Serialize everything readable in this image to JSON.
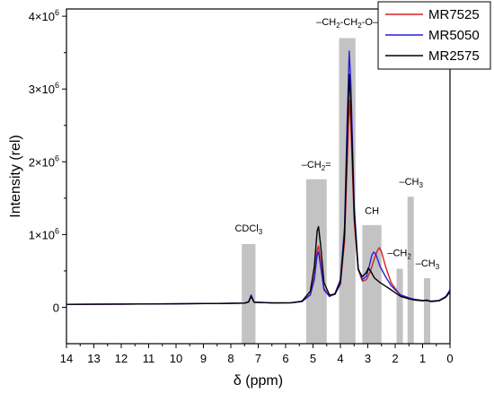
{
  "chart_data": {
    "type": "line",
    "xlabel": "δ (ppm)",
    "ylabel": "Intensity (rel)",
    "xlim": [
      14,
      0
    ],
    "ylim": [
      -500000,
      4100000
    ],
    "x_reversed": true,
    "x_ticks": [
      "14",
      "13",
      "12",
      "11",
      "10",
      "9",
      "8",
      "7",
      "6",
      "5",
      "4",
      "3",
      "2",
      "1",
      "0"
    ],
    "y_ticks": [
      {
        "value": 0,
        "base": "0",
        "exp": ""
      },
      {
        "value": 1000000,
        "base": "1×10",
        "exp": "6"
      },
      {
        "value": 2000000,
        "base": "2×10",
        "exp": "6"
      },
      {
        "value": 3000000,
        "base": "3×10",
        "exp": "6"
      },
      {
        "value": 4000000,
        "base": "4×10",
        "exp": "6"
      }
    ],
    "legend_position": "top-right",
    "series": [
      {
        "name": "MR7525",
        "color": "#d62020",
        "points": [
          [
            14,
            40000
          ],
          [
            12,
            44000
          ],
          [
            10,
            48000
          ],
          [
            8.5,
            52000
          ],
          [
            7.5,
            58000
          ],
          [
            7.35,
            75000
          ],
          [
            7.26,
            160000
          ],
          [
            7.15,
            70000
          ],
          [
            6.5,
            60000
          ],
          [
            5.8,
            62000
          ],
          [
            5.4,
            80000
          ],
          [
            5.1,
            180000
          ],
          [
            4.95,
            420000
          ],
          [
            4.85,
            780000
          ],
          [
            4.8,
            840000
          ],
          [
            4.72,
            620000
          ],
          [
            4.6,
            260000
          ],
          [
            4.4,
            150000
          ],
          [
            4.2,
            180000
          ],
          [
            4.0,
            320000
          ],
          [
            3.85,
            900000
          ],
          [
            3.75,
            2000000
          ],
          [
            3.68,
            2850000
          ],
          [
            3.62,
            2500000
          ],
          [
            3.5,
            1200000
          ],
          [
            3.35,
            520000
          ],
          [
            3.2,
            360000
          ],
          [
            3.05,
            380000
          ],
          [
            2.9,
            500000
          ],
          [
            2.75,
            680000
          ],
          [
            2.65,
            780000
          ],
          [
            2.58,
            820000
          ],
          [
            2.5,
            760000
          ],
          [
            2.35,
            560000
          ],
          [
            2.15,
            340000
          ],
          [
            2.0,
            260000
          ],
          [
            1.8,
            160000
          ],
          [
            1.5,
            120000
          ],
          [
            1.3,
            100000
          ],
          [
            1.0,
            90000
          ],
          [
            0.85,
            95000
          ],
          [
            0.7,
            80000
          ],
          [
            0.4,
            90000
          ],
          [
            0.15,
            140000
          ],
          [
            0,
            220000
          ]
        ]
      },
      {
        "name": "MR5050",
        "color": "#2a1ed6",
        "points": [
          [
            14,
            40000
          ],
          [
            12,
            44000
          ],
          [
            10,
            48000
          ],
          [
            8.5,
            52000
          ],
          [
            7.5,
            58000
          ],
          [
            7.35,
            78000
          ],
          [
            7.26,
            170000
          ],
          [
            7.15,
            72000
          ],
          [
            6.5,
            60000
          ],
          [
            5.8,
            62000
          ],
          [
            5.4,
            78000
          ],
          [
            5.1,
            170000
          ],
          [
            4.95,
            380000
          ],
          [
            4.85,
            720000
          ],
          [
            4.8,
            760000
          ],
          [
            4.72,
            560000
          ],
          [
            4.6,
            240000
          ],
          [
            4.4,
            150000
          ],
          [
            4.2,
            190000
          ],
          [
            4.0,
            380000
          ],
          [
            3.85,
            1100000
          ],
          [
            3.75,
            2600000
          ],
          [
            3.68,
            3520000
          ],
          [
            3.62,
            3100000
          ],
          [
            3.5,
            1400000
          ],
          [
            3.35,
            540000
          ],
          [
            3.2,
            380000
          ],
          [
            3.05,
            430000
          ],
          [
            2.95,
            560000
          ],
          [
            2.85,
            720000
          ],
          [
            2.78,
            760000
          ],
          [
            2.7,
            720000
          ],
          [
            2.55,
            560000
          ],
          [
            2.35,
            420000
          ],
          [
            2.15,
            300000
          ],
          [
            2.0,
            240000
          ],
          [
            1.8,
            170000
          ],
          [
            1.5,
            130000
          ],
          [
            1.3,
            110000
          ],
          [
            1.0,
            95000
          ],
          [
            0.85,
            100000
          ],
          [
            0.7,
            85000
          ],
          [
            0.4,
            95000
          ],
          [
            0.15,
            150000
          ],
          [
            0,
            240000
          ]
        ]
      },
      {
        "name": "MR2575",
        "color": "#000000",
        "points": [
          [
            14,
            40000
          ],
          [
            12,
            44000
          ],
          [
            10,
            48000
          ],
          [
            8.5,
            52000
          ],
          [
            7.5,
            58000
          ],
          [
            7.35,
            72000
          ],
          [
            7.26,
            150000
          ],
          [
            7.15,
            68000
          ],
          [
            6.5,
            60000
          ],
          [
            5.8,
            62000
          ],
          [
            5.4,
            85000
          ],
          [
            5.1,
            220000
          ],
          [
            4.95,
            560000
          ],
          [
            4.85,
            1050000
          ],
          [
            4.8,
            1110000
          ],
          [
            4.72,
            850000
          ],
          [
            4.6,
            340000
          ],
          [
            4.4,
            170000
          ],
          [
            4.2,
            180000
          ],
          [
            4.0,
            340000
          ],
          [
            3.85,
            1000000
          ],
          [
            3.75,
            2300000
          ],
          [
            3.68,
            3200000
          ],
          [
            3.62,
            2800000
          ],
          [
            3.5,
            1300000
          ],
          [
            3.35,
            520000
          ],
          [
            3.2,
            420000
          ],
          [
            3.05,
            480000
          ],
          [
            2.98,
            540000
          ],
          [
            2.9,
            500000
          ],
          [
            2.75,
            400000
          ],
          [
            2.55,
            340000
          ],
          [
            2.35,
            290000
          ],
          [
            2.15,
            240000
          ],
          [
            2.0,
            200000
          ],
          [
            1.8,
            150000
          ],
          [
            1.5,
            115000
          ],
          [
            1.3,
            100000
          ],
          [
            1.0,
            90000
          ],
          [
            0.85,
            95000
          ],
          [
            0.7,
            80000
          ],
          [
            0.4,
            90000
          ],
          [
            0.15,
            140000
          ],
          [
            0,
            210000
          ]
        ]
      }
    ],
    "bars": [
      {
        "x0": 7.6,
        "x1": 7.1,
        "height": 870000
      },
      {
        "x0": 5.25,
        "x1": 4.5,
        "height": 1760000
      },
      {
        "x0": 4.05,
        "x1": 3.45,
        "height": 3700000
      },
      {
        "x0": 3.2,
        "x1": 2.5,
        "height": 1130000
      },
      {
        "x0": 1.95,
        "x1": 1.72,
        "height": 530000
      },
      {
        "x0": 1.55,
        "x1": 1.32,
        "height": 1520000
      },
      {
        "x0": 0.95,
        "x1": 0.72,
        "height": 400000
      }
    ],
    "annotations": [
      {
        "parts": [
          {
            "t": "CDCl"
          },
          {
            "t": "3",
            "sub": true
          }
        ],
        "x": 7.35,
        "y": 1040000
      },
      {
        "parts": [
          {
            "t": "–CH"
          },
          {
            "t": "2",
            "sub": true
          },
          {
            "t": "="
          }
        ],
        "x": 4.88,
        "y": 1920000
      },
      {
        "parts": [
          {
            "t": "–CH"
          },
          {
            "t": "2",
            "sub": true
          },
          {
            "t": "-CH"
          },
          {
            "t": "2",
            "sub": true
          },
          {
            "t": "-O–"
          }
        ],
        "x": 3.75,
        "y": 3880000
      },
      {
        "parts": [
          {
            "t": "CH"
          }
        ],
        "x": 2.85,
        "y": 1280000
      },
      {
        "parts": [
          {
            "t": "–CH"
          },
          {
            "t": "2",
            "sub": true
          }
        ],
        "x": 1.85,
        "y": 700000
      },
      {
        "parts": [
          {
            "t": "–CH"
          },
          {
            "t": "3",
            "sub": true
          }
        ],
        "x": 1.42,
        "y": 1680000
      },
      {
        "parts": [
          {
            "t": "–CH"
          },
          {
            "t": "3",
            "sub": true
          }
        ],
        "x": 0.82,
        "y": 560000
      }
    ],
    "grid": false
  }
}
